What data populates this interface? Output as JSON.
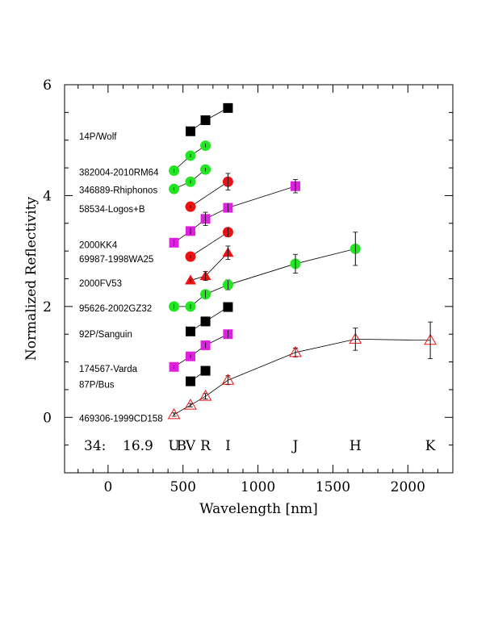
{
  "chart_data": {
    "type": "scatter",
    "title": "",
    "xlabel": "Wavelength [nm]",
    "ylabel": "Normalized Reflectivity",
    "xlim": [
      -290,
      2300
    ],
    "ylim": [
      -1,
      6
    ],
    "xticks": [
      0,
      500,
      1000,
      1500,
      2000
    ],
    "yticks": [
      0,
      2,
      4,
      6
    ],
    "footer": {
      "id": "34:",
      "mag": "16.9",
      "bands": [
        {
          "label": "U",
          "x": 440
        },
        {
          "label": "B",
          "x": 490
        },
        {
          "label": "V",
          "x": 550
        },
        {
          "label": "R",
          "x": 650
        },
        {
          "label": "I",
          "x": 800
        },
        {
          "label": "J",
          "x": 1250
        },
        {
          "label": "H",
          "x": 1650
        },
        {
          "label": "K",
          "x": 2150
        }
      ]
    },
    "series": [
      {
        "name": "14P/Wolf",
        "marker": "square",
        "color": "#000000",
        "label_y": 5.07,
        "points": [
          [
            550,
            5.16,
            0
          ],
          [
            650,
            5.36,
            0
          ],
          [
            800,
            5.58,
            0
          ]
        ]
      },
      {
        "name": "382004-2010RM64",
        "marker": "circle",
        "color": "#22e622",
        "label_y": 4.42,
        "points": [
          [
            440,
            4.45,
            0.03
          ],
          [
            550,
            4.72,
            0.03
          ],
          [
            650,
            4.9,
            0.03
          ]
        ]
      },
      {
        "name": "346889-Rhiphonos",
        "marker": "circle",
        "color": "#22e622",
        "label_y": 4.1,
        "points": [
          [
            440,
            4.12,
            0.03
          ],
          [
            550,
            4.25,
            0.03
          ],
          [
            650,
            4.47,
            0.03
          ]
        ]
      },
      {
        "name": "58534-Logos+B",
        "marker": "circle",
        "color": "#ee1111",
        "label_y": 3.76,
        "points": [
          [
            550,
            3.8,
            0.03
          ],
          [
            800,
            4.25,
            0.15
          ]
        ]
      },
      {
        "name": "2000KK4",
        "marker": "square",
        "color": "#e020e0",
        "label_y": 3.11,
        "points": [
          [
            440,
            3.15,
            0.06
          ],
          [
            550,
            3.36,
            0.06
          ],
          [
            650,
            3.58,
            0.12
          ],
          [
            800,
            3.78,
            0.08
          ],
          [
            1250,
            4.17,
            0.12
          ]
        ]
      },
      {
        "name": "69987-1998WA25",
        "marker": "circle",
        "color": "#ee1111",
        "label_y": 2.86,
        "points": [
          [
            550,
            2.9,
            0.03
          ],
          [
            800,
            3.34,
            0.08
          ]
        ]
      },
      {
        "name": "2000FV53",
        "marker": "triangle",
        "color": "#ee1111",
        "label_y": 2.42,
        "points": [
          [
            550,
            2.47,
            0.03
          ],
          [
            650,
            2.55,
            0.08
          ],
          [
            800,
            2.97,
            0.12
          ]
        ]
      },
      {
        "name": "95626-2002GZ32",
        "marker": "circle",
        "color": "#22e622",
        "label_y": 1.97,
        "points": [
          [
            440,
            2.0,
            0.04
          ],
          [
            550,
            2.0,
            0.04
          ],
          [
            650,
            2.22,
            0.07
          ],
          [
            800,
            2.39,
            0.09
          ],
          [
            1250,
            2.77,
            0.17
          ],
          [
            1650,
            3.04,
            0.3
          ]
        ]
      },
      {
        "name": "92P/Sanguin",
        "marker": "square",
        "color": "#000000",
        "label_y": 1.5,
        "points": [
          [
            550,
            1.55,
            0
          ],
          [
            650,
            1.73,
            0
          ],
          [
            800,
            1.99,
            0
          ]
        ]
      },
      {
        "name": "174567-Varda",
        "marker": "square",
        "color": "#e020e0",
        "label_y": 0.88,
        "points": [
          [
            440,
            0.91,
            0.03
          ],
          [
            550,
            1.1,
            0.03
          ],
          [
            650,
            1.3,
            0.05
          ],
          [
            800,
            1.5,
            0.07
          ]
        ]
      },
      {
        "name": "87P/Bus",
        "marker": "square",
        "color": "#000000",
        "label_y": 0.59,
        "points": [
          [
            550,
            0.65,
            0
          ],
          [
            650,
            0.84,
            0
          ]
        ]
      },
      {
        "name": "469306-1999CD158",
        "marker": "triangle-open",
        "color": "#ee1111",
        "label_y": -0.02,
        "points": [
          [
            440,
            0.05,
            0.03
          ],
          [
            550,
            0.22,
            0.03
          ],
          [
            650,
            0.38,
            0.05
          ],
          [
            800,
            0.67,
            0.08
          ],
          [
            1250,
            1.17,
            0.08
          ],
          [
            1650,
            1.41,
            0.2
          ],
          [
            2150,
            1.39,
            0.33
          ]
        ]
      }
    ]
  }
}
